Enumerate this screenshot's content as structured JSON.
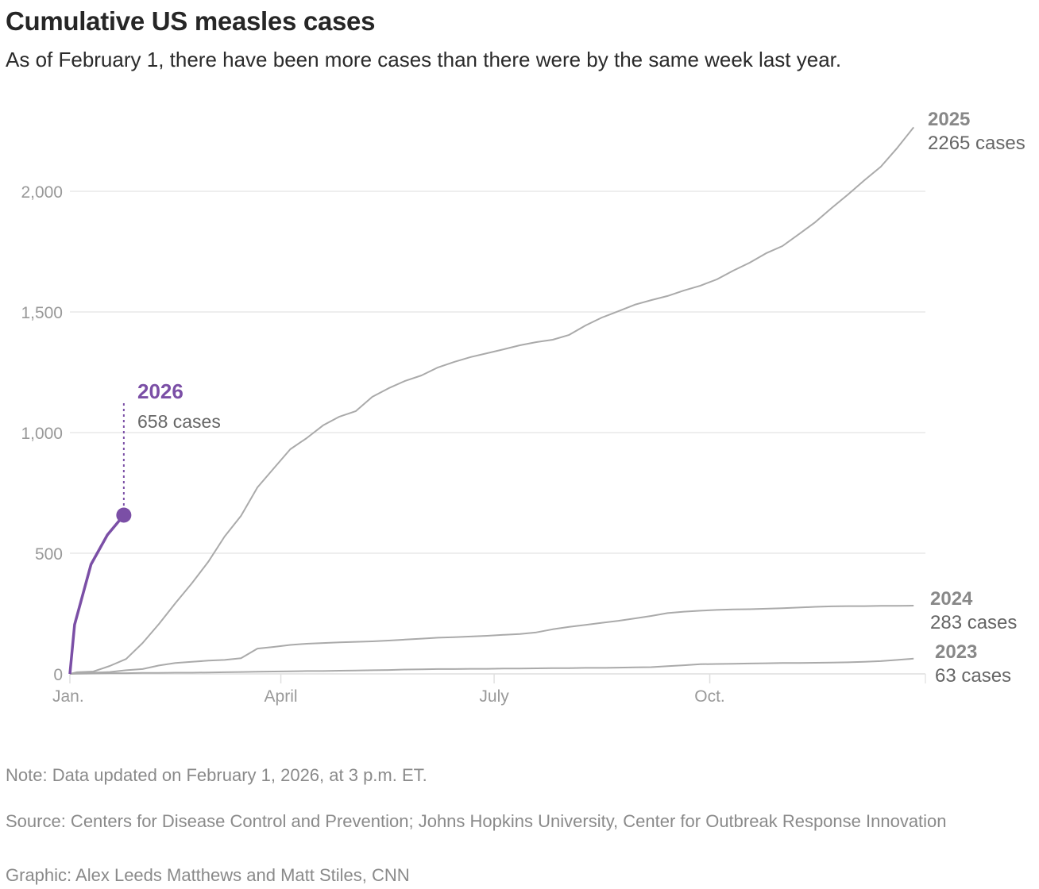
{
  "title": "Cumulative US measles cases",
  "subtitle": "As of February 1, there have been more cases than there were by the same week last year.",
  "notes": {
    "note": "Note: Data updated on February 1, 2026, at 3 p.m. ET.",
    "source": "Source: Centers for Disease Control and Prevention; Johns Hopkins University, Center for Outbreak Response Innovation",
    "credit": "Graphic: Alex Leeds Matthews and Matt Stiles, CNN"
  },
  "chart_data": {
    "type": "line",
    "title": "Cumulative US measles cases",
    "xlabel": "",
    "ylabel": "",
    "ylim": [
      0,
      2300
    ],
    "yticks": [
      0,
      500,
      1000,
      1500,
      2000
    ],
    "ytick_labels": [
      "0",
      "500",
      "1,000",
      "1,500",
      "2,000"
    ],
    "xticks": [
      "01-01",
      "04-01",
      "07-01",
      "10-01"
    ],
    "xtick_labels": [
      "Jan.",
      "April",
      "July",
      "Oct."
    ],
    "grid": true,
    "colors": {
      "highlight": "#7b4fa6",
      "past": "#aaaaaa",
      "label": "#888888",
      "grid": "#e9e9e9"
    },
    "x": [
      "01-01",
      "01-04",
      "01-11",
      "01-18",
      "01-25",
      "02-01",
      "02-08",
      "02-15",
      "02-22",
      "03-01",
      "03-08",
      "03-15",
      "03-22",
      "03-29",
      "04-05",
      "04-12",
      "04-19",
      "04-26",
      "05-03",
      "05-10",
      "05-17",
      "05-24",
      "05-31",
      "06-07",
      "06-14",
      "06-21",
      "06-28",
      "07-05",
      "07-12",
      "07-19",
      "07-26",
      "08-02",
      "08-09",
      "08-16",
      "08-23",
      "08-30",
      "09-06",
      "09-13",
      "09-20",
      "09-27",
      "10-04",
      "10-11",
      "10-18",
      "10-25",
      "11-01",
      "11-08",
      "11-15",
      "11-22",
      "11-29",
      "12-06",
      "12-13",
      "12-20",
      "12-27"
    ],
    "series": [
      {
        "name": "2025",
        "end_label": "2265 cases",
        "values": [
          0,
          7,
          10,
          33,
          62,
          128,
          207,
          293,
          375,
          464,
          569,
          655,
          773,
          852,
          931,
          977,
          1030,
          1066,
          1089,
          1148,
          1184,
          1214,
          1237,
          1270,
          1293,
          1313,
          1329,
          1345,
          1362,
          1375,
          1385,
          1405,
          1444,
          1477,
          1503,
          1530,
          1549,
          1566,
          1589,
          1609,
          1635,
          1671,
          1704,
          1743,
          1773,
          1822,
          1872,
          1931,
          1987,
          2046,
          2102,
          2180,
          2265
        ]
      },
      {
        "name": "2024",
        "end_label": "283 cases",
        "values": [
          0,
          3,
          5,
          8,
          15,
          20,
          35,
          45,
          50,
          55,
          58,
          65,
          105,
          112,
          120,
          125,
          128,
          131,
          133,
          135,
          138,
          142,
          146,
          150,
          152,
          155,
          158,
          162,
          165,
          172,
          185,
          195,
          203,
          212,
          220,
          230,
          240,
          252,
          258,
          262,
          265,
          267,
          268,
          270,
          272,
          275,
          278,
          280,
          281,
          281,
          282,
          282,
          283
        ]
      },
      {
        "name": "2023",
        "end_label": "63 cases",
        "values": [
          0,
          1,
          2,
          3,
          3,
          4,
          4,
          5,
          5,
          6,
          7,
          8,
          9,
          10,
          11,
          12,
          12,
          13,
          14,
          15,
          16,
          18,
          19,
          20,
          20,
          21,
          21,
          22,
          22,
          23,
          24,
          24,
          25,
          25,
          26,
          27,
          28,
          32,
          36,
          40,
          41,
          42,
          43,
          44,
          45,
          45,
          46,
          47,
          48,
          50,
          53,
          58,
          63
        ]
      },
      {
        "name": "2026",
        "end_label": "658 cases",
        "highlight": true,
        "x": [
          "01-01",
          "01-03",
          "01-10",
          "01-17",
          "01-24"
        ],
        "values": [
          0,
          204,
          454,
          576,
          658
        ]
      }
    ]
  }
}
